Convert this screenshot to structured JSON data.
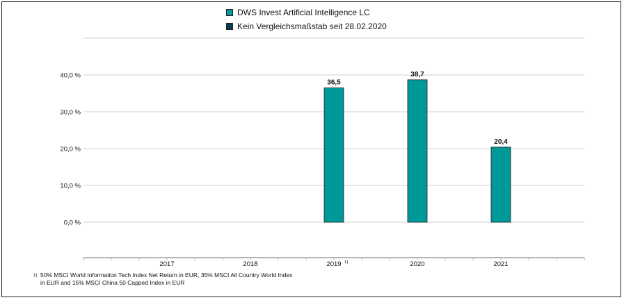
{
  "chart_data": {
    "type": "bar",
    "categories": [
      "2017",
      "2018",
      "2019",
      "2020",
      "2021"
    ],
    "category_notes": [
      "",
      "",
      "1)",
      "",
      ""
    ],
    "series": [
      {
        "name": "DWS Invest Artificial Intelligence  LC",
        "color": "#009999",
        "values": [
          null,
          null,
          36.5,
          38.7,
          20.4
        ],
        "labels": [
          "",
          "",
          "36,5",
          "38,7",
          "20,4"
        ]
      },
      {
        "name": "Kein Vergleichsmaßstab seit 28.02.2020",
        "color": "#0b3c4e",
        "values": [
          null,
          null,
          null,
          null,
          null
        ]
      }
    ],
    "yticks": [
      0,
      10,
      20,
      30,
      40
    ],
    "ytick_labels": [
      "0,0 %",
      "10,0 %",
      "20,0 %",
      "30,0 %",
      "40,0 %"
    ],
    "ylim": [
      0,
      50
    ],
    "grid": true,
    "legend_position": "top-center"
  },
  "footnote": {
    "marker": "1)",
    "line1": "50% MSCI World Information Tech Index Net Return in EUR, 35% MSCI All Country World Index",
    "line2": "in EUR and 15% MSCI China 50 Capped Index in EUR"
  }
}
